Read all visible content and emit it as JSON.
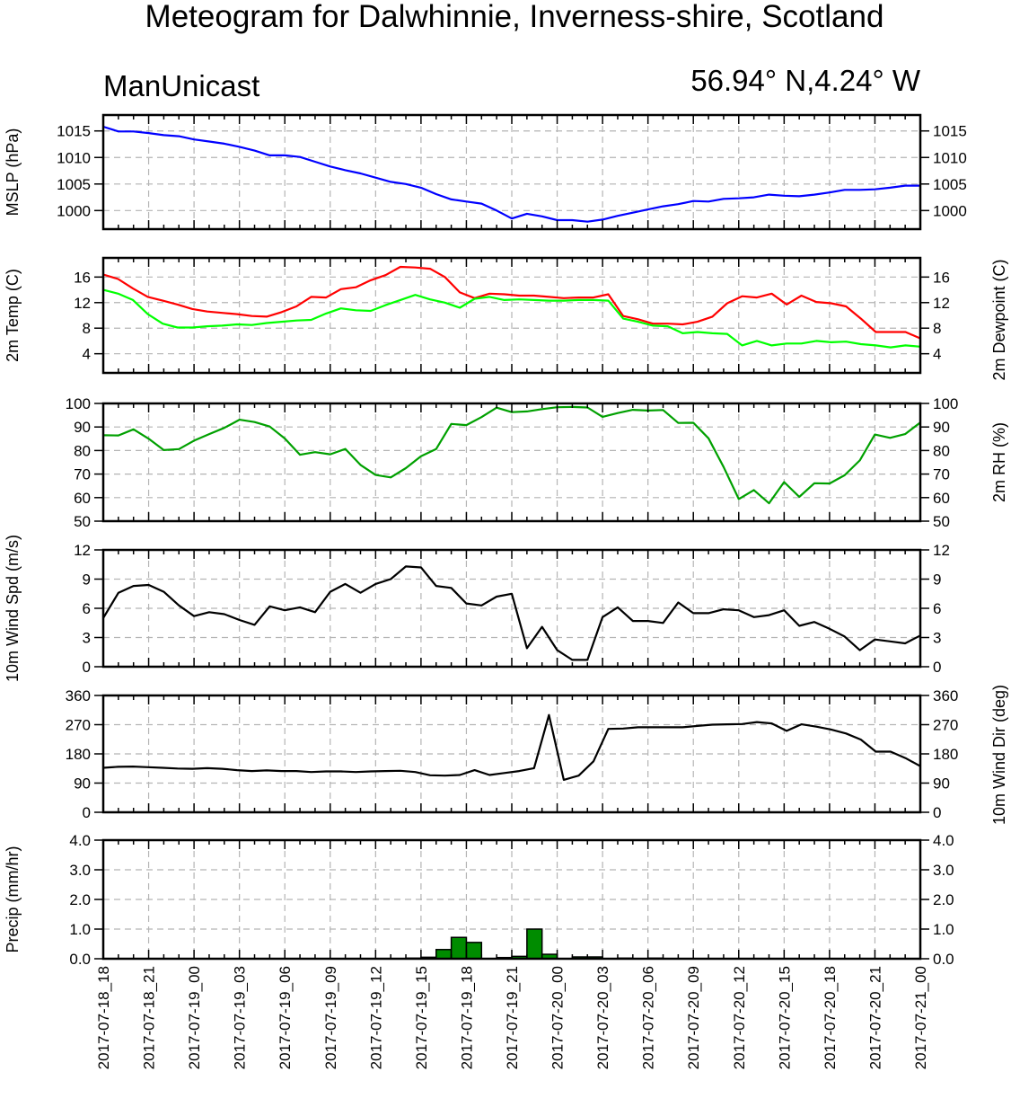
{
  "header": {
    "title": "Meteogram for Dalwhinnie, Inverness-shire, Scotland",
    "model": "ManUnicast",
    "location": "56.94° N,4.24° W"
  },
  "colors": {
    "mslp": "#0000ff",
    "temp": "#ff0000",
    "dewpoint": "#00ff00",
    "rh": "#00a000",
    "wind": "#000000",
    "precip_fill": "#008c00",
    "grid": "#b4b4b4"
  },
  "chart_data": [
    {
      "type": "line",
      "ylabel_left": "MSLP (hPa)",
      "ylabel_right": "",
      "ylim": [
        996.5,
        1018
      ],
      "yticks": [
        1000,
        1005,
        1010,
        1015
      ],
      "ytick_labels": [
        "1000",
        "1005",
        "1010",
        "1015"
      ],
      "grid": true,
      "series": [
        {
          "color": "#0000ff",
          "values": [
            1015.8,
            1014.9,
            1014.9,
            1014.6,
            1014.2,
            1014.0,
            1013.4,
            1013.0,
            1012.6,
            1012.0,
            1011.3,
            1010.4,
            1010.4,
            1010.1,
            1009.2,
            1008.3,
            1007.6,
            1007.0,
            1006.2,
            1005.4,
            1005.0,
            1004.3,
            1003.1,
            1002.1,
            1001.7,
            1001.3,
            1000.0,
            998.5,
            999.4,
            998.9,
            998.2,
            998.2,
            997.9,
            998.3,
            999.0,
            999.6,
            1000.2,
            1000.8,
            1001.2,
            1001.8,
            1001.7,
            1002.2,
            1002.3,
            1002.5,
            1003.0,
            1002.8,
            1002.7,
            1003.0,
            1003.4,
            1003.9,
            1003.9,
            1004.0,
            1004.3,
            1004.7,
            1004.7
          ]
        }
      ]
    },
    {
      "type": "line",
      "ylabel_left": "2m Temp (C)",
      "ylabel_right": "2m Dewpoint (C)",
      "ylim": [
        1,
        19
      ],
      "yticks": [
        4,
        8,
        12,
        16
      ],
      "ytick_labels": [
        "4",
        "8",
        "12",
        "16"
      ],
      "grid": true,
      "series": [
        {
          "color": "#ff0000",
          "values": [
            16.4,
            15.7,
            14.2,
            12.9,
            12.3,
            11.7,
            11.0,
            10.6,
            10.4,
            10.2,
            9.9,
            9.8,
            10.5,
            11.4,
            12.9,
            12.8,
            14.1,
            14.4,
            15.5,
            16.3,
            17.6,
            17.5,
            17.3,
            16.0,
            13.6,
            12.7,
            13.4,
            13.3,
            13.1,
            13.1,
            12.9,
            12.7,
            12.8,
            12.8,
            13.3,
            9.9,
            9.4,
            8.7,
            8.7,
            8.6,
            9.0,
            9.8,
            11.9,
            13.0,
            12.8,
            13.4,
            11.7,
            13.1,
            12.1,
            11.9,
            11.4,
            9.5,
            7.4,
            7.4,
            7.4,
            6.4
          ]
        },
        {
          "color": "#00ff00",
          "values": [
            14.0,
            13.4,
            12.4,
            10.2,
            8.7,
            8.1,
            8.1,
            8.3,
            8.4,
            8.6,
            8.5,
            8.8,
            9.0,
            9.2,
            9.3,
            10.3,
            11.1,
            10.8,
            10.7,
            11.6,
            12.4,
            13.2,
            12.5,
            12.0,
            11.2,
            12.6,
            12.9,
            12.4,
            12.5,
            12.4,
            12.3,
            12.3,
            12.4,
            12.4,
            12.3,
            9.5,
            9.0,
            8.4,
            8.3,
            7.2,
            7.4,
            7.2,
            7.1,
            5.3,
            6.0,
            5.3,
            5.6,
            5.6,
            6.0,
            5.8,
            5.9,
            5.5,
            5.3,
            5.0,
            5.3,
            5.1
          ]
        }
      ]
    },
    {
      "type": "line",
      "ylabel_left": "",
      "ylabel_right": "2m RH (%)",
      "ylim": [
        50,
        100
      ],
      "yticks": [
        50,
        60,
        70,
        80,
        90,
        100
      ],
      "ytick_labels": [
        "50",
        "60",
        "70",
        "80",
        "90",
        "100"
      ],
      "grid": true,
      "series": [
        {
          "color": "#00a000",
          "values": [
            86.5,
            86.4,
            89.0,
            85.0,
            80.2,
            80.6,
            84.2,
            87.0,
            89.6,
            93.1,
            92.1,
            90.2,
            85.1,
            78.2,
            79.3,
            78.4,
            80.7,
            73.9,
            69.6,
            68.6,
            72.5,
            77.6,
            80.6,
            91.3,
            90.8,
            94.2,
            98.2,
            96.3,
            96.6,
            97.6,
            98.4,
            98.5,
            98.3,
            94.3,
            95.9,
            97.3,
            97.0,
            97.2,
            91.7,
            91.8,
            85.2,
            73.0,
            59.4,
            63.2,
            57.6,
            66.6,
            60.3,
            66.1,
            66.0,
            69.5,
            75.8,
            86.8,
            85.4,
            87.0,
            91.9
          ]
        }
      ]
    },
    {
      "type": "line",
      "ylabel_left": "10m Wind Spd (m/s)",
      "ylabel_right": "",
      "ylim": [
        0,
        12
      ],
      "yticks": [
        0,
        3,
        6,
        9,
        12
      ],
      "ytick_labels": [
        "0",
        "3",
        "6",
        "9",
        "12"
      ],
      "grid": true,
      "series": [
        {
          "color": "#000000",
          "values": [
            5.0,
            7.6,
            8.3,
            8.4,
            7.7,
            6.3,
            5.2,
            5.6,
            5.4,
            4.8,
            4.3,
            6.2,
            5.8,
            6.1,
            5.6,
            7.7,
            8.5,
            7.6,
            8.5,
            9.0,
            10.3,
            10.2,
            8.3,
            8.1,
            6.5,
            6.3,
            7.2,
            7.5,
            1.9,
            4.1,
            1.7,
            0.7,
            0.7,
            5.1,
            6.1,
            4.7,
            4.7,
            4.5,
            6.6,
            5.5,
            5.5,
            5.9,
            5.8,
            5.1,
            5.3,
            5.8,
            4.2,
            4.6,
            3.9,
            3.1,
            1.7,
            2.8,
            2.6,
            2.4,
            3.2
          ]
        }
      ]
    },
    {
      "type": "line",
      "ylabel_left": "",
      "ylabel_right": "10m Wind Dir (deg)",
      "ylim": [
        0,
        360
      ],
      "yticks": [
        0,
        90,
        180,
        270,
        360
      ],
      "ytick_labels": [
        "0",
        "90",
        "180",
        "270",
        "360"
      ],
      "grid": true,
      "series": [
        {
          "color": "#000000",
          "values": [
            137,
            140,
            141,
            139,
            137,
            135,
            134,
            136,
            134,
            130,
            127,
            129,
            127,
            127,
            124,
            126,
            126,
            124,
            126,
            127,
            128,
            124,
            114,
            113,
            115,
            130,
            115,
            121,
            127,
            136,
            300,
            100,
            113,
            157,
            257,
            258,
            262,
            262,
            262,
            262,
            266,
            270,
            271,
            272,
            278,
            274,
            251,
            271,
            264,
            255,
            243,
            224,
            187,
            187,
            167,
            142
          ]
        }
      ]
    },
    {
      "type": "bar",
      "ylabel_left": "Precip (mm/hr)",
      "ylabel_right": "",
      "ylim": [
        0,
        4
      ],
      "yticks": [
        0,
        1,
        2,
        3,
        4
      ],
      "ytick_labels": [
        "0.0",
        "1.0",
        "2.0",
        "3.0",
        "4.0"
      ],
      "grid": true,
      "bars": [
        {
          "x": 21,
          "value": 0.02
        },
        {
          "x": 22,
          "value": 0.05
        },
        {
          "x": 23,
          "value": 0.31
        },
        {
          "x": 24,
          "value": 0.72
        },
        {
          "x": 25,
          "value": 0.55
        },
        {
          "x": 27,
          "value": 0.04
        },
        {
          "x": 28,
          "value": 0.08
        },
        {
          "x": 29,
          "value": 1.0
        },
        {
          "x": 30,
          "value": 0.15
        },
        {
          "x": 32,
          "value": 0.06
        },
        {
          "x": 33,
          "value": 0.06
        },
        {
          "x": 35,
          "value": 0.02
        },
        {
          "x": 37,
          "value": 0.02
        }
      ]
    }
  ],
  "x_axis": {
    "ticks": [
      "2017-07-18_18",
      "2017-07-18_21",
      "2017-07-19_00",
      "2017-07-19_03",
      "2017-07-19_06",
      "2017-07-19_09",
      "2017-07-19_12",
      "2017-07-19_15",
      "2017-07-19_18",
      "2017-07-19_21",
      "2017-07-20_00",
      "2017-07-20_03",
      "2017-07-20_06",
      "2017-07-20_09",
      "2017-07-20_12",
      "2017-07-20_15",
      "2017-07-20_18",
      "2017-07-20_21",
      "2017-07-21_00"
    ]
  }
}
